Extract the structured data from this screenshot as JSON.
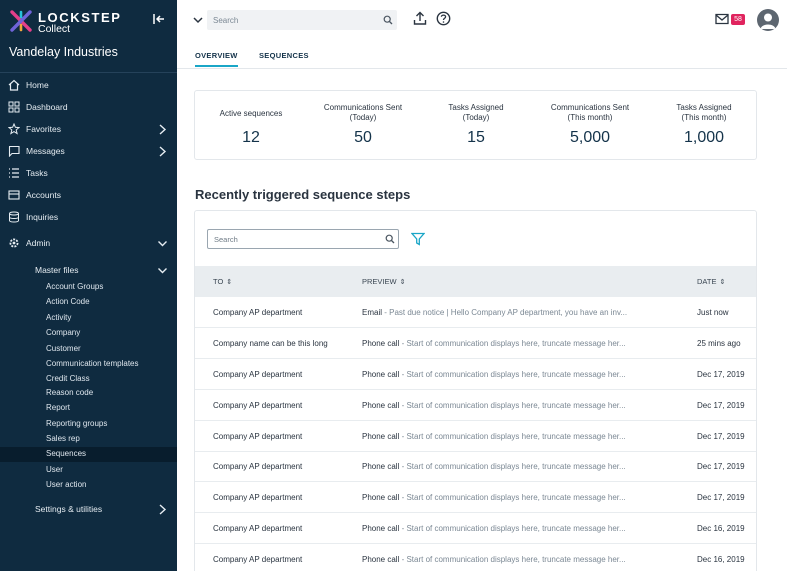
{
  "brand": {
    "name": "LOCKSTEP",
    "sub": "Collect"
  },
  "org_name": "Vandelay Industries",
  "colors": {
    "sidebar": "#0f2b40",
    "accent": "#1aa6c7",
    "badge": "#e0245e"
  },
  "nav": [
    {
      "label": "Home",
      "icon": "home-icon"
    },
    {
      "label": "Dashboard",
      "icon": "dashboard-icon"
    },
    {
      "label": "Favorites",
      "icon": "star-icon"
    },
    {
      "label": "Messages",
      "icon": "message-icon"
    },
    {
      "label": "Tasks",
      "icon": "tasks-icon"
    },
    {
      "label": "Accounts",
      "icon": "accounts-icon"
    },
    {
      "label": "Inquiries",
      "icon": "inquiries-icon"
    },
    {
      "label": "Admin",
      "icon": "gear-icon"
    }
  ],
  "admin": {
    "master_files_label": "Master files",
    "master_files": [
      "Account Groups",
      "Action Code",
      "Activity",
      "Company",
      "Customer",
      "Communication templates",
      "Credit Class",
      "Reason code",
      "Report",
      "Reporting groups",
      "Sales rep",
      "Sequences",
      "User",
      "User action"
    ],
    "active_item": "Sequences",
    "settings_label": "Settings & utilities"
  },
  "topbar": {
    "search_placeholder": "Search",
    "unread_count": "58"
  },
  "tabs": [
    "OVERVIEW",
    "SEQUENCES"
  ],
  "stats": [
    {
      "title": "Active sequences",
      "value": "12"
    },
    {
      "title": "Communications Sent\n(Today)",
      "value": "50"
    },
    {
      "title": "Tasks Assigned\n(Today)",
      "value": "15"
    },
    {
      "title": "Communications Sent\n(This month)",
      "value": "5,000"
    },
    {
      "title": "Tasks Assigned\n(This month)",
      "value": "1,000"
    }
  ],
  "section_title": "Recently triggered sequence steps",
  "table": {
    "search_placeholder": "Search",
    "columns": [
      "TO",
      "PREVIEW",
      "DATE"
    ],
    "rows": [
      {
        "to": "Company AP department",
        "kind": "Email",
        "msg": " - Past due notice | Hello Company AP department, you have an inv...",
        "date": "Just now"
      },
      {
        "to": "Company name can be this long",
        "kind": "Phone call",
        "msg": " - Start of communication displays here, truncate message her...",
        "date": "25 mins ago"
      },
      {
        "to": "Company AP department",
        "kind": "Phone call",
        "msg": " - Start of communication displays here, truncate message her...",
        "date": "Dec 17, 2019"
      },
      {
        "to": "Company AP department",
        "kind": "Phone call",
        "msg": " - Start of communication displays here, truncate message her...",
        "date": "Dec 17, 2019"
      },
      {
        "to": "Company AP department",
        "kind": "Phone call",
        "msg": " - Start of communication displays here, truncate message her...",
        "date": "Dec 17, 2019"
      },
      {
        "to": "Company AP department",
        "kind": "Phone call",
        "msg": " - Start of communication displays here, truncate message her...",
        "date": "Dec 17, 2019"
      },
      {
        "to": "Company AP department",
        "kind": "Phone call",
        "msg": " - Start of communication displays here, truncate message her...",
        "date": "Dec 17, 2019"
      },
      {
        "to": "Company AP department",
        "kind": "Phone call",
        "msg": " - Start of communication displays here, truncate message her...",
        "date": "Dec 16, 2019"
      },
      {
        "to": "Company AP department",
        "kind": "Phone call",
        "msg": " - Start of communication displays here, truncate message her...",
        "date": "Dec 16, 2019"
      }
    ]
  }
}
